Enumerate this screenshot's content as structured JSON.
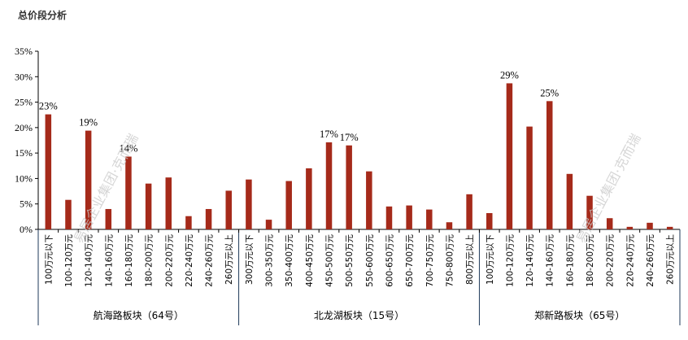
{
  "title": "总价段分析",
  "chart_data": {
    "type": "bar",
    "y_ticks": [
      "0%",
      "5%",
      "10%",
      "15%",
      "20%",
      "25%",
      "30%",
      "35%"
    ],
    "ylim": [
      0,
      35
    ],
    "bar_color": "#a52a1a",
    "watermark": "易居企业集团·克而瑞",
    "groups": [
      {
        "name": "航海路板块（64号）",
        "categories": [
          "100万元以下",
          "100-120万元",
          "120-140万元",
          "140-160万元",
          "160-180万元",
          "180-200万元",
          "200-220万元",
          "220-240万元",
          "240-260万元",
          "260万元以上"
        ],
        "values": [
          22.6,
          5.8,
          19.4,
          4.0,
          14.3,
          9.0,
          10.2,
          2.6,
          4.0,
          7.6
        ],
        "labels": [
          "23%",
          "",
          "19%",
          "",
          "14%",
          "",
          "",
          "",
          "",
          ""
        ]
      },
      {
        "name": "北龙湖板块（15号）",
        "categories": [
          "300万元以下",
          "300-350万元",
          "350-400万元",
          "400-450万元",
          "450-500万元",
          "500-550万元",
          "550-600万元",
          "600-650万元",
          "650-700万元",
          "700-750万元",
          "750-800万元",
          "800万元以上"
        ],
        "values": [
          9.8,
          1.9,
          9.5,
          12.0,
          17.1,
          16.5,
          11.4,
          4.5,
          4.7,
          3.9,
          1.4,
          6.9
        ],
        "labels": [
          "",
          "",
          "",
          "",
          "17%",
          "17%",
          "",
          "",
          "",
          "",
          "",
          ""
        ]
      },
      {
        "name": "郑新路板块（65号）",
        "categories": [
          "100万元以下",
          "100-120万元",
          "120-140万元",
          "140-160万元",
          "160-180万元",
          "180-200万元",
          "200-220万元",
          "220-240万元",
          "240-260万元",
          "260万元以上"
        ],
        "values": [
          3.2,
          28.7,
          20.2,
          25.2,
          10.9,
          6.6,
          2.2,
          0.5,
          1.3,
          0.5
        ],
        "labels": [
          "",
          "29%",
          "",
          "25%",
          "",
          "",
          "",
          "",
          "",
          ""
        ]
      }
    ]
  }
}
